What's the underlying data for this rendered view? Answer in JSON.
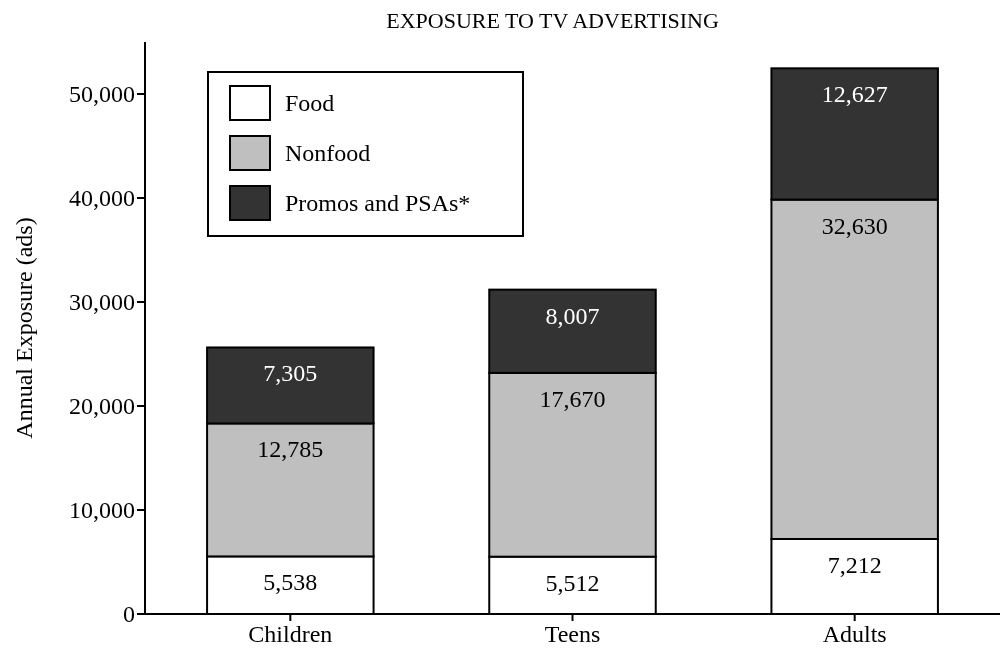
{
  "chart_data": {
    "type": "bar",
    "title": "EXPOSURE TO TV ADVERTISING",
    "ylabel": "Annual Exposure (ads)",
    "categories": [
      "Children",
      "Teens",
      "Adults"
    ],
    "stacked": true,
    "legend": "top left",
    "grid": false,
    "ylim": [
      0,
      55000
    ],
    "yticks": [
      {
        "value": 0,
        "label": "0"
      },
      {
        "value": 10000,
        "label": "10,000"
      },
      {
        "value": 20000,
        "label": "20,000"
      },
      {
        "value": 30000,
        "label": "30,000"
      },
      {
        "value": 40000,
        "label": "40,000"
      },
      {
        "value": 50000,
        "label": "50,000"
      }
    ],
    "series": [
      {
        "name": "Food",
        "color": "#ffffff",
        "values": [
          5538,
          5512,
          7212
        ],
        "value_labels": [
          "5,538",
          "5,512",
          "7,212"
        ]
      },
      {
        "name": "Nonfood",
        "color": "#bfbfbf",
        "values": [
          12785,
          17670,
          32630
        ],
        "value_labels": [
          "12,785",
          "17,670",
          "32,630"
        ]
      },
      {
        "name": "Promos and PSAs*",
        "color": "#333333",
        "values": [
          7305,
          8007,
          12627
        ],
        "value_labels": [
          "7,305",
          "8,007",
          "12,627"
        ]
      }
    ]
  }
}
